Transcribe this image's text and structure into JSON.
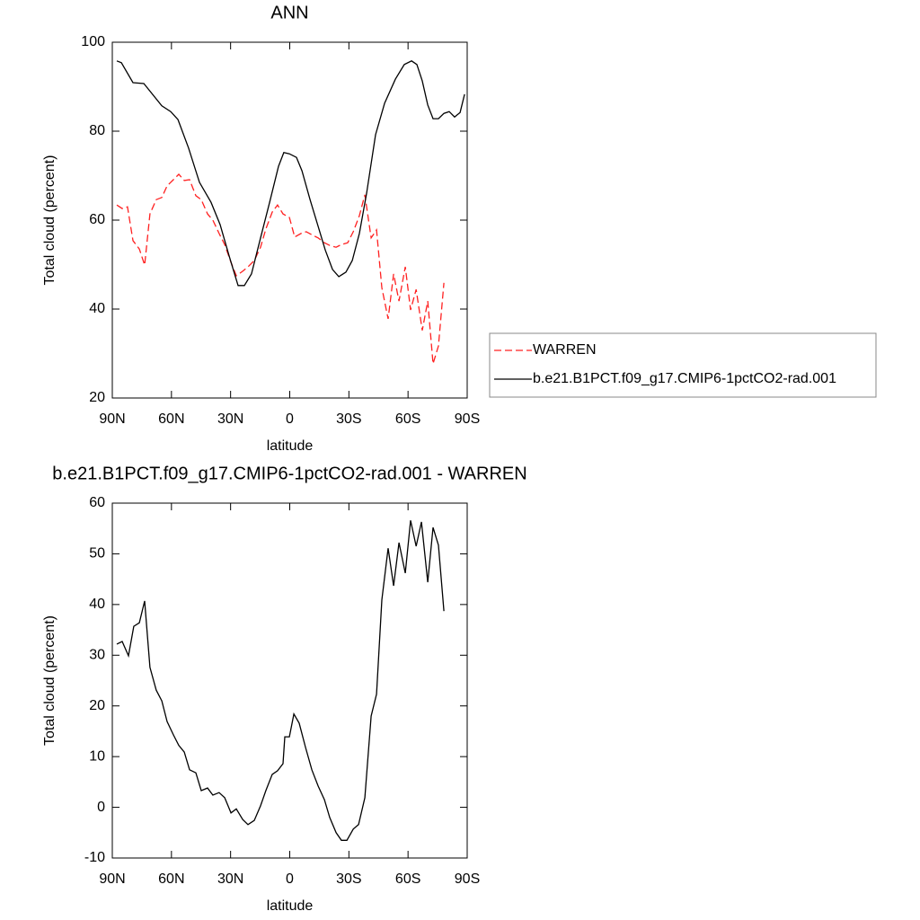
{
  "chart_data": [
    {
      "type": "line",
      "title": "ANN",
      "xlabel": "latitude",
      "ylabel": "Total cloud (percent)",
      "xlim": [
        90,
        -90
      ],
      "xticks": [
        {
          "value": 90,
          "label": "90N"
        },
        {
          "value": 60,
          "label": "60N"
        },
        {
          "value": 30,
          "label": "30N"
        },
        0,
        {
          "value": -30,
          "label": "30S"
        },
        {
          "value": -60,
          "label": "60S"
        },
        {
          "value": -90,
          "label": "90S"
        }
      ],
      "ylim": [
        20,
        100
      ],
      "yticks": [
        20,
        40,
        60,
        80,
        100
      ],
      "legend": "right",
      "series": [
        {
          "name": "WARREN",
          "color": "#ff2020",
          "dash": true,
          "x": [
            87.7,
            85.0,
            82.3,
            79.5,
            76.3,
            73.6,
            70.9,
            67.7,
            64.9,
            62.2,
            59.0,
            56.3,
            53.5,
            50.8,
            47.6,
            44.9,
            41.7,
            39.0,
            35.8,
            33.0,
            29.8,
            27.1,
            23.9,
            21.2,
            18.0,
            14.8,
            12.1,
            8.9,
            6.2,
            3.4,
            0.2,
            -2.5,
            -5.7,
            -8.4,
            -11.6,
            -14.4,
            -17.6,
            -20.3,
            -23.5,
            -26.2,
            -29.4,
            -32.2,
            -35.3,
            -38.1,
            -41.3,
            -44.0,
            -46.7,
            -49.9,
            -52.7,
            -55.4,
            -58.6,
            -61.3,
            -64.1,
            -67.2,
            -70.0,
            -72.7,
            -75.4,
            -78.2
          ],
          "values": [
            63.4,
            62.6,
            63.0,
            55.4,
            53.5,
            49.9,
            61.4,
            64.6,
            65.1,
            67.7,
            69.1,
            70.3,
            68.9,
            69.1,
            65.5,
            64.6,
            61.4,
            60.0,
            57.0,
            54.5,
            50.5,
            47.5,
            48.5,
            49.5,
            50.9,
            53.9,
            58.0,
            61.8,
            63.4,
            61.4,
            60.6,
            56.2,
            57.0,
            57.4,
            56.6,
            56.0,
            54.9,
            54.3,
            53.9,
            54.5,
            54.9,
            57.4,
            61.0,
            65.7,
            56.0,
            57.8,
            44.8,
            37.8,
            47.9,
            41.8,
            49.5,
            39.8,
            44.4,
            35.2,
            41.8,
            27.7,
            31.7,
            45.9
          ]
        },
        {
          "name": "b.e21.B1PCT.f09_g17.CMIP6-1pctCO2-rad.001",
          "color": "#000000",
          "dash": false,
          "x": [
            87.7,
            85.4,
            79.5,
            74.0,
            64.9,
            60.4,
            56.7,
            51.3,
            45.8,
            39.9,
            35.3,
            30.7,
            26.2,
            23.0,
            19.4,
            14.8,
            10.2,
            5.7,
            3.0,
            0.2,
            -3.4,
            -6.2,
            -10.3,
            -14.8,
            -18.0,
            -21.7,
            -24.9,
            -28.5,
            -31.7,
            -35.3,
            -39.0,
            -43.5,
            -48.1,
            -53.6,
            -58.1,
            -61.8,
            -64.5,
            -67.2,
            -70.0,
            -72.7,
            -75.4,
            -78.2,
            -80.9,
            -83.6,
            -86.4,
            -88.7
          ],
          "values": [
            95.8,
            95.4,
            90.9,
            90.7,
            85.7,
            84.4,
            82.6,
            76.2,
            68.5,
            64.0,
            59.0,
            51.9,
            45.3,
            45.3,
            47.9,
            56.0,
            64.0,
            72.1,
            75.2,
            74.9,
            74.1,
            71.1,
            64.6,
            58.0,
            53.3,
            48.9,
            47.3,
            48.3,
            50.9,
            57.0,
            66.1,
            79.2,
            86.3,
            91.7,
            95.0,
            95.8,
            95.0,
            91.3,
            85.9,
            82.8,
            82.8,
            84.0,
            84.4,
            83.2,
            84.2,
            88.3
          ]
        }
      ]
    },
    {
      "type": "line",
      "title": "b.e21.B1PCT.f09_g17.CMIP6-1pctCO2-rad.001 - WARREN",
      "xlabel": "latitude",
      "ylabel": "Total cloud (percent)",
      "xlim": [
        90,
        -90
      ],
      "xticks": [
        {
          "value": 90,
          "label": "90N"
        },
        {
          "value": 60,
          "label": "60N"
        },
        {
          "value": 30,
          "label": "30N"
        },
        0,
        {
          "value": -30,
          "label": "30S"
        },
        {
          "value": -60,
          "label": "60S"
        },
        {
          "value": -90,
          "label": "90S"
        }
      ],
      "ylim": [
        -10,
        60
      ],
      "yticks": [
        -10,
        0,
        10,
        20,
        30,
        40,
        50,
        60
      ],
      "series": [
        {
          "color": "#000000",
          "dash": false,
          "x": [
            87.7,
            85.0,
            81.8,
            79.1,
            76.3,
            73.6,
            70.9,
            67.7,
            64.9,
            62.2,
            59.0,
            56.3,
            53.5,
            50.8,
            47.6,
            44.9,
            41.7,
            39.0,
            35.8,
            33.0,
            29.8,
            27.1,
            23.9,
            21.2,
            18.0,
            14.8,
            12.1,
            8.9,
            6.2,
            3.4,
            2.5,
            0.2,
            -2.1,
            -4.8,
            -8.0,
            -11.2,
            -14.4,
            -17.6,
            -20.3,
            -23.5,
            -26.2,
            -29.0,
            -32.2,
            -34.9,
            -38.1,
            -41.3,
            -44.0,
            -46.7,
            -49.9,
            -52.7,
            -55.4,
            -58.6,
            -61.3,
            -64.1,
            -66.8,
            -70.0,
            -72.7,
            -75.4,
            -78.2
          ],
          "values": [
            32.2,
            32.7,
            29.9,
            35.7,
            36.4,
            40.7,
            27.6,
            23.1,
            21.0,
            16.9,
            14.3,
            12.2,
            10.9,
            7.4,
            6.8,
            3.3,
            3.8,
            2.4,
            2.9,
            1.9,
            -1.1,
            -0.3,
            -2.4,
            -3.4,
            -2.6,
            0.3,
            3.3,
            6.5,
            7.2,
            8.6,
            13.9,
            13.9,
            18.4,
            16.6,
            11.8,
            7.4,
            4.2,
            1.5,
            -2.0,
            -5.0,
            -6.5,
            -6.5,
            -4.3,
            -3.4,
            1.9,
            18.0,
            22.3,
            40.9,
            51.1,
            43.7,
            52.2,
            46.2,
            56.6,
            51.5,
            56.3,
            44.4,
            55.2,
            51.7,
            38.7
          ]
        }
      ]
    }
  ]
}
